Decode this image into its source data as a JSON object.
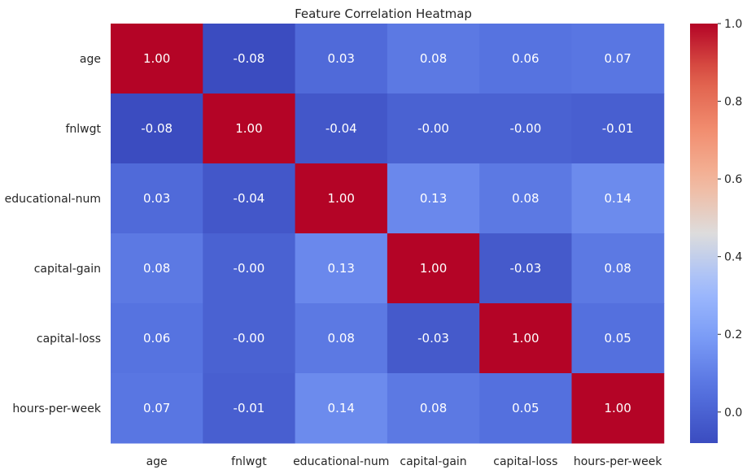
{
  "chart_data": {
    "type": "heatmap",
    "title": "Feature Correlation Heatmap",
    "xlabel": "",
    "ylabel": "",
    "x_categories": [
      "age",
      "fnlwgt",
      "educational-num",
      "capital-gain",
      "capital-loss",
      "hours-per-week"
    ],
    "y_categories": [
      "age",
      "fnlwgt",
      "educational-num",
      "capital-gain",
      "capital-loss",
      "hours-per-week"
    ],
    "values": [
      [
        1.0,
        -0.08,
        0.03,
        0.08,
        0.06,
        0.07
      ],
      [
        -0.08,
        1.0,
        -0.04,
        -0.0,
        -0.0,
        -0.01
      ],
      [
        0.03,
        -0.04,
        1.0,
        0.13,
        0.08,
        0.14
      ],
      [
        0.08,
        -0.0,
        0.13,
        1.0,
        -0.03,
        0.08
      ],
      [
        0.06,
        -0.0,
        0.08,
        -0.03,
        1.0,
        0.05
      ],
      [
        0.07,
        -0.01,
        0.14,
        0.08,
        0.05,
        1.0
      ]
    ],
    "value_labels": [
      [
        "1.00",
        "-0.08",
        "0.03",
        "0.08",
        "0.06",
        "0.07"
      ],
      [
        "-0.08",
        "1.00",
        "-0.04",
        "-0.00",
        "-0.00",
        "-0.01"
      ],
      [
        "0.03",
        "-0.04",
        "1.00",
        "0.13",
        "0.08",
        "0.14"
      ],
      [
        "0.08",
        "-0.00",
        "0.13",
        "1.00",
        "-0.03",
        "0.08"
      ],
      [
        "0.06",
        "-0.00",
        "0.08",
        "-0.03",
        "1.00",
        "0.05"
      ],
      [
        "0.07",
        "-0.01",
        "0.14",
        "0.08",
        "0.05",
        "1.00"
      ]
    ],
    "colormap": "coolwarm",
    "vmin": -0.08,
    "vmax": 1.0,
    "colorbar": {
      "ticks": [
        0.0,
        0.2,
        0.4,
        0.6,
        0.8,
        1.0
      ],
      "tick_labels": [
        "0.0",
        "0.2",
        "0.4",
        "0.6",
        "0.8",
        "1.0"
      ],
      "placement": "right"
    },
    "grid": false
  }
}
